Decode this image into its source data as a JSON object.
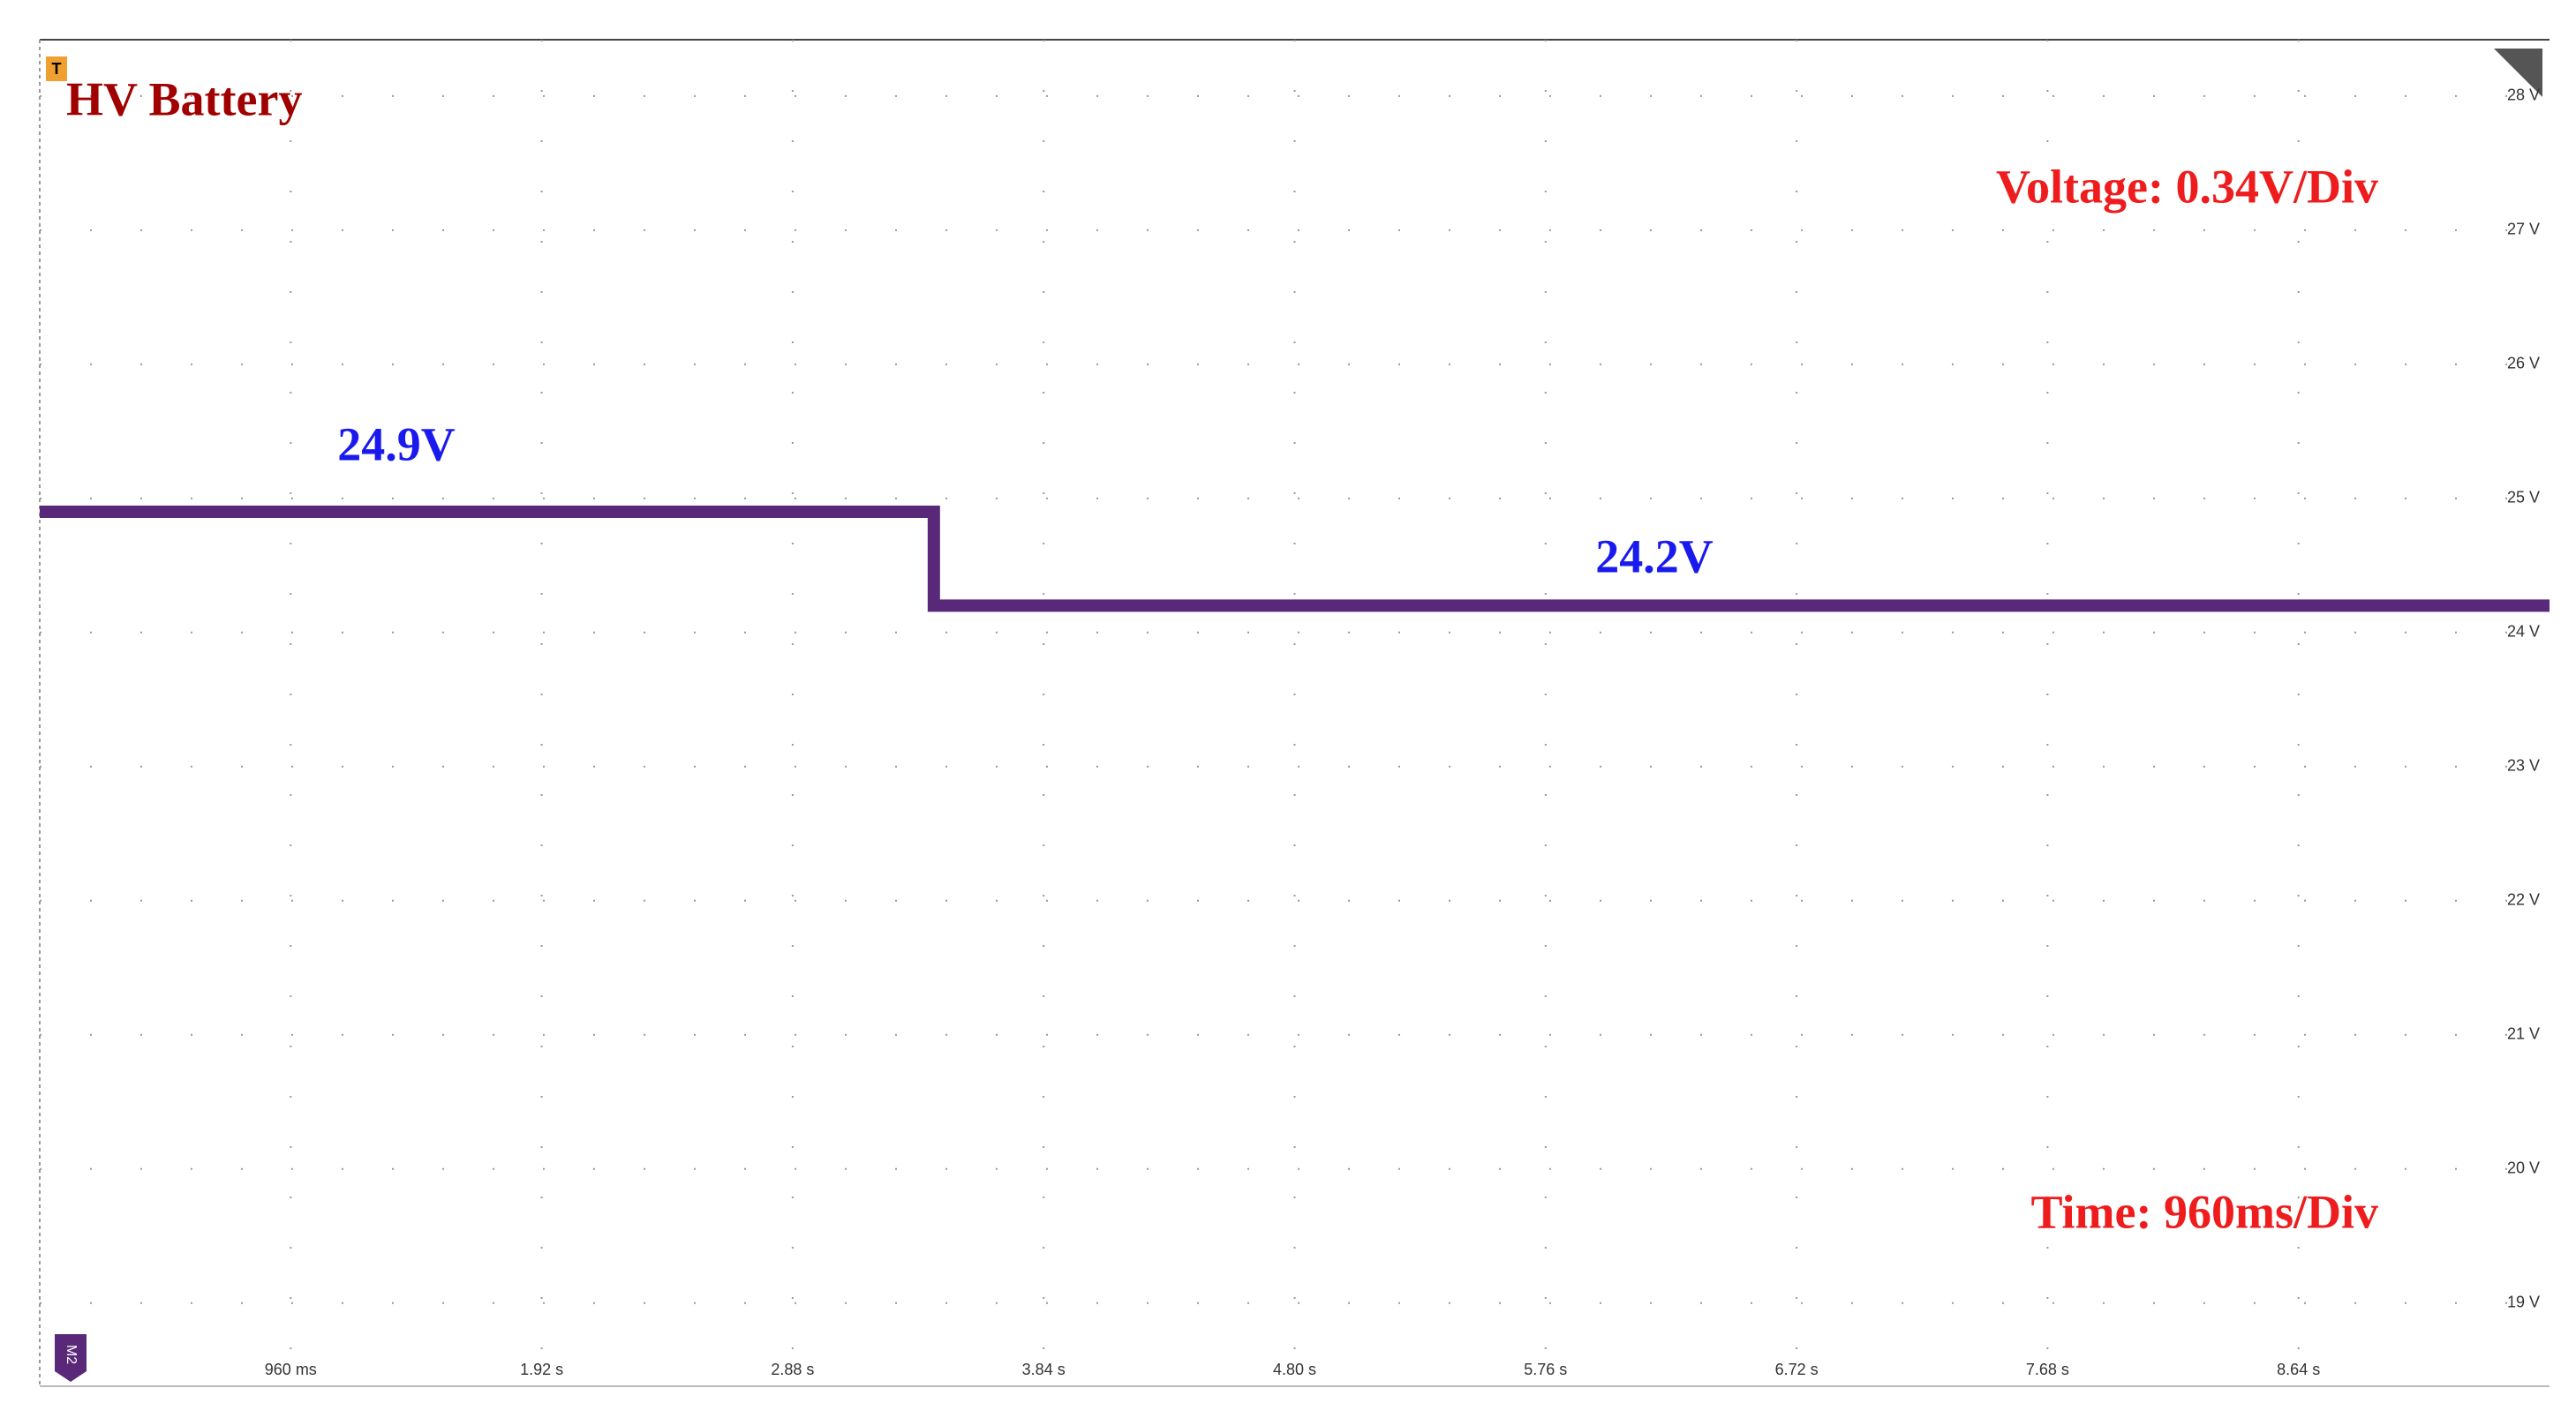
{
  "chart_data": {
    "type": "line",
    "title": "HV Battery",
    "annotations": [
      "24.9V",
      "24.2V",
      "Voltage: 0.34V/Div",
      "Time: 960ms/Div"
    ],
    "trigger_label": "T",
    "channel_label": "M2",
    "xlim": [
      0,
      9.6
    ],
    "xticks": [
      {
        "value": 0.96,
        "label": "960 ms"
      },
      {
        "value": 1.92,
        "label": "1.92 s"
      },
      {
        "value": 2.88,
        "label": "2.88 s"
      },
      {
        "value": 3.84,
        "label": "3.84 s"
      },
      {
        "value": 4.8,
        "label": "4.80 s"
      },
      {
        "value": 5.76,
        "label": "5.76 s"
      },
      {
        "value": 6.72,
        "label": "6.72 s"
      },
      {
        "value": 7.68,
        "label": "7.68 s"
      },
      {
        "value": 8.64,
        "label": "8.64 s"
      }
    ],
    "ylim": [
      18.38,
      28.42
    ],
    "yticks": [
      {
        "value": 19,
        "label": "19 V"
      },
      {
        "value": 20,
        "label": "20 V"
      },
      {
        "value": 21,
        "label": "21 V"
      },
      {
        "value": 22,
        "label": "22 V"
      },
      {
        "value": 23,
        "label": "23 V"
      },
      {
        "value": 24,
        "label": "24 V"
      },
      {
        "value": 25,
        "label": "25 V"
      },
      {
        "value": 26,
        "label": "26 V"
      },
      {
        "value": 27,
        "label": "27 V"
      },
      {
        "value": 28,
        "label": "28 V"
      }
    ],
    "grid": true,
    "x": [
      0,
      3.42,
      3.42,
      9.6
    ],
    "series": [
      {
        "color": "#5a2878",
        "values": [
          24.9,
          24.9,
          24.2,
          24.2
        ]
      }
    ]
  }
}
